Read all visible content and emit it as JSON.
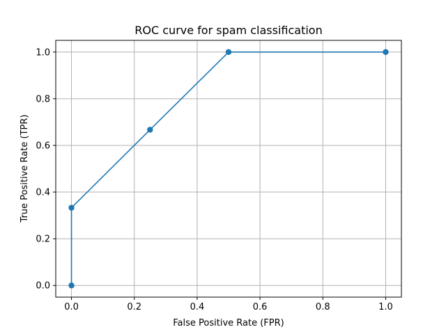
{
  "chart_data": {
    "type": "line",
    "title": "ROC curve for spam classification",
    "xlabel": "False Positive Rate (FPR)",
    "ylabel": "True Positive Rate (TPR)",
    "xlim": [
      -0.05,
      1.05
    ],
    "ylim": [
      -0.05,
      1.05
    ],
    "xticks": [
      0.0,
      0.2,
      0.4,
      0.6,
      0.8,
      1.0
    ],
    "yticks": [
      0.0,
      0.2,
      0.4,
      0.6,
      0.8,
      1.0
    ],
    "xtick_labels": [
      "0.0",
      "0.2",
      "0.4",
      "0.6",
      "0.8",
      "1.0"
    ],
    "ytick_labels": [
      "0.0",
      "0.2",
      "0.4",
      "0.6",
      "0.8",
      "1.0"
    ],
    "grid": true,
    "legend": "none",
    "series": [
      {
        "x": [
          0.0,
          0.0,
          0.25,
          0.5,
          1.0
        ],
        "y": [
          0.0,
          0.333,
          0.667,
          1.0,
          1.0
        ],
        "color": "#1f77b4",
        "marker": "circle"
      }
    ]
  }
}
